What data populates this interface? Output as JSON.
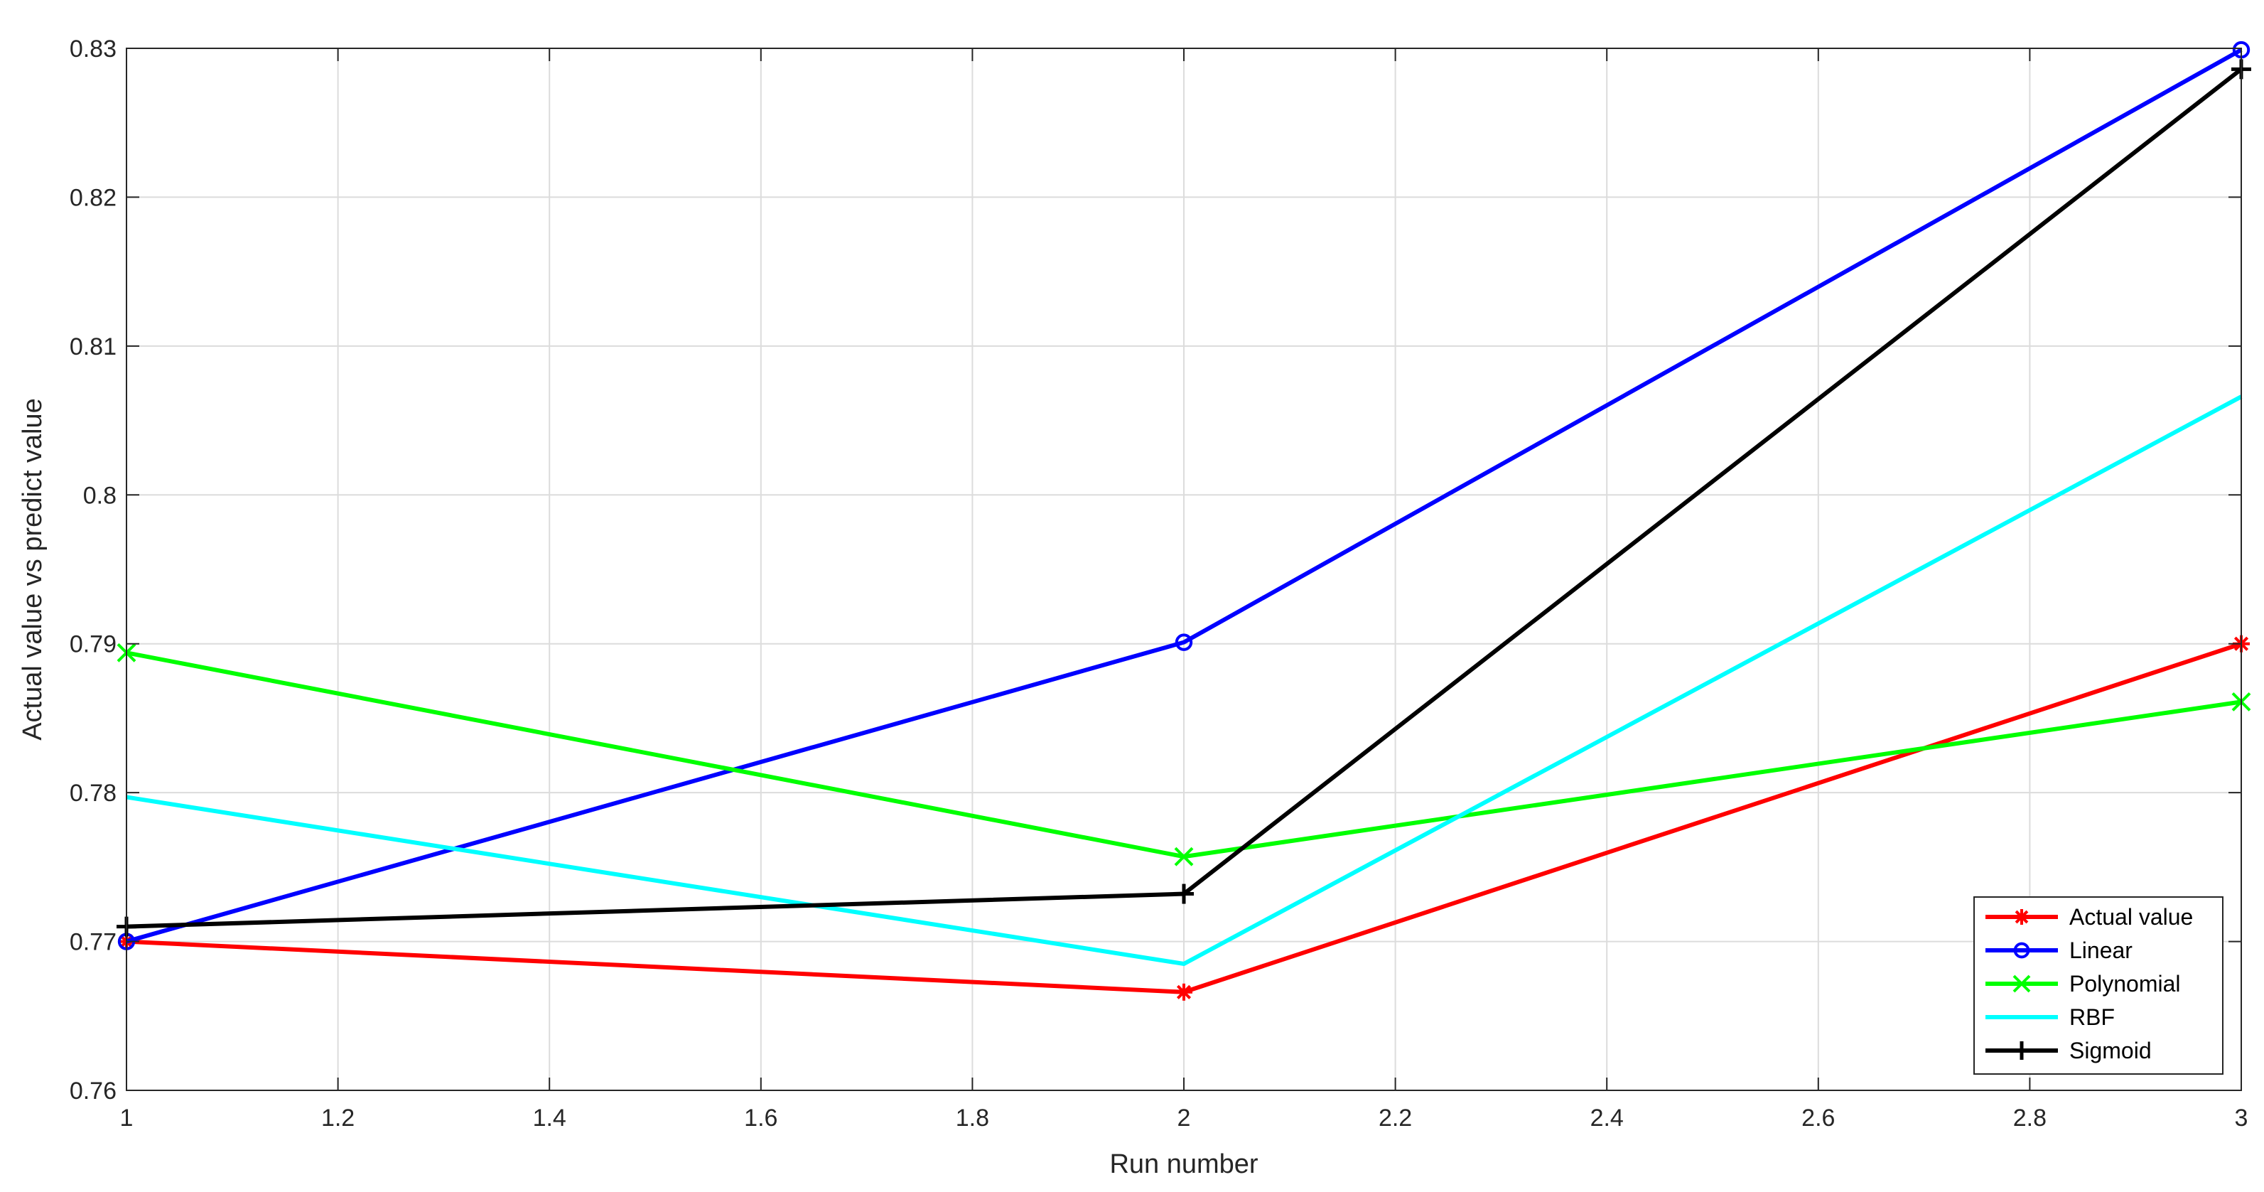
{
  "chart_data": {
    "type": "line",
    "title": "",
    "xlabel": "Run number",
    "ylabel": "Actual value vs predict value",
    "xlim": [
      1,
      3
    ],
    "ylim": [
      0.76,
      0.83
    ],
    "xticks": [
      1,
      1.2,
      1.4,
      1.6,
      1.8,
      2,
      2.2,
      2.4,
      2.6,
      2.8,
      3
    ],
    "xtick_labels": [
      "1",
      "1.2",
      "1.4",
      "1.6",
      "1.8",
      "2",
      "2.2",
      "2.4",
      "2.6",
      "2.8",
      "3"
    ],
    "yticks": [
      0.76,
      0.77,
      0.78,
      0.79,
      0.8,
      0.81,
      0.82,
      0.83
    ],
    "ytick_labels": [
      "0.76",
      "0.77",
      "0.78",
      "0.79",
      "0.8",
      "0.81",
      "0.82",
      "0.83"
    ],
    "grid": true,
    "legend_position": "bottom-right",
    "x": [
      1,
      2,
      3
    ],
    "series": [
      {
        "name": "Actual value",
        "values": [
          0.77,
          0.7666,
          0.79
        ],
        "color": "#ff0000",
        "marker": "asterisk"
      },
      {
        "name": "Linear",
        "values": [
          0.77,
          0.7901,
          0.8299
        ],
        "color": "#0000ff",
        "marker": "circle"
      },
      {
        "name": "Polynomial",
        "values": [
          0.7894,
          0.7757,
          0.7861
        ],
        "color": "#00ff00",
        "marker": "x"
      },
      {
        "name": "RBF",
        "values": [
          0.7797,
          0.7685,
          0.8066
        ],
        "color": "#00ffff",
        "marker": "none"
      },
      {
        "name": "Sigmoid",
        "values": [
          0.771,
          0.7732,
          0.8286
        ],
        "color": "#000000",
        "marker": "plus"
      }
    ]
  }
}
